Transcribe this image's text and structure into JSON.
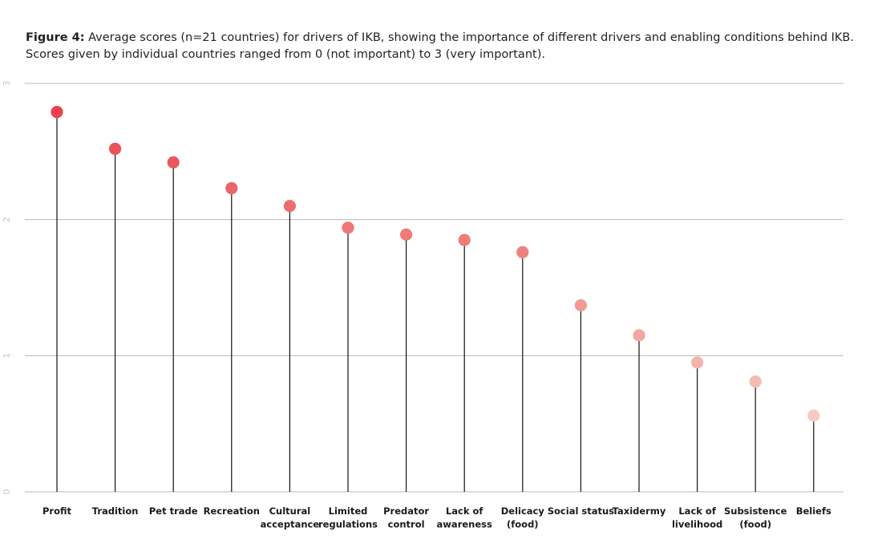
{
  "caption": {
    "label": "Figure 4:",
    "line1": " Average scores (n=21 countries) for drivers of IKB, showing the importance of different drivers and enabling conditions behind IKB.",
    "line2": "Scores given by individual countries ranged from 0 (not important) to 3 (very important)."
  },
  "chart_data": {
    "type": "lollipop",
    "categories": [
      [
        "Profit"
      ],
      [
        "Tradition"
      ],
      [
        "Pet trade"
      ],
      [
        "Recreation"
      ],
      [
        "Cultural",
        "acceptance"
      ],
      [
        "Limited",
        "regulations"
      ],
      [
        "Predator",
        "control"
      ],
      [
        "Lack of",
        "awareness"
      ],
      [
        "Delicacy",
        "(food)"
      ],
      [
        "Social status"
      ],
      [
        "Taxidermy"
      ],
      [
        "Lack of",
        "livelihood"
      ],
      [
        "Subsistence",
        "(food)"
      ],
      [
        "Beliefs"
      ]
    ],
    "values": [
      2.79,
      2.52,
      2.42,
      2.23,
      2.1,
      1.94,
      1.89,
      1.85,
      1.76,
      1.37,
      1.15,
      0.95,
      0.81,
      0.56
    ],
    "ylim": [
      0,
      3
    ],
    "yticks": [
      0,
      1,
      2,
      3
    ],
    "grid": true,
    "colors": {
      "high": "#e8434a",
      "low": "#f7cbbf",
      "stem": "#111111",
      "grid": "#b9b9b9"
    }
  }
}
